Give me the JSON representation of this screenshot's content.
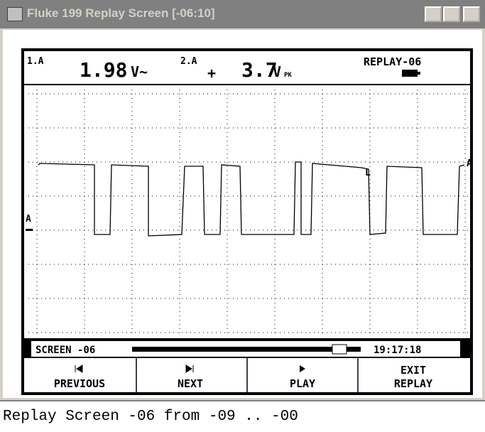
{
  "window": {
    "title": "Fluke 199 Replay Screen [-06:10]"
  },
  "header": {
    "ch1_label": "1.A",
    "ch1_value": "1.98",
    "ch1_unit": "V~",
    "ch2_label": "2.A",
    "ch2_sign": "+",
    "ch2_value": "3.7",
    "ch2_unit": "V",
    "ch2_unit_suffix": "PK",
    "mode": "REPLAY-06"
  },
  "markers": {
    "left": "A",
    "right": "A",
    "trigger": "L"
  },
  "replay_bar": {
    "screen": "SCREEN -06",
    "time": "19:17:18"
  },
  "buttons": [
    {
      "label": "PREVIOUS"
    },
    {
      "label": "NEXT"
    },
    {
      "label": "PLAY"
    },
    {
      "label": "EXIT",
      "label2": "REPLAY"
    }
  ],
  "status": "Replay Screen -06 from -09 .. -00"
}
